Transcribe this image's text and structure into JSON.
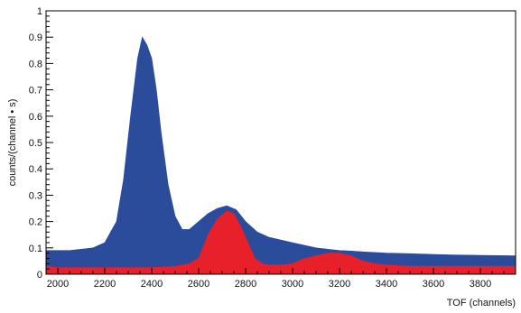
{
  "chart_data": {
    "type": "area",
    "title": "",
    "xlabel": "TOF (channels)",
    "ylabel": "counts/(channel • s)",
    "xlim": [
      1950,
      3950
    ],
    "ylim": [
      0,
      1
    ],
    "x_ticks": [
      2000,
      2200,
      2400,
      2600,
      2800,
      3000,
      3200,
      3400,
      3600,
      3800
    ],
    "y_ticks": [
      0,
      0.1,
      0.2,
      0.3,
      0.4,
      0.5,
      0.6,
      0.7,
      0.8,
      0.9,
      1
    ],
    "x_tick_labels": [
      "2000",
      "2200",
      "2400",
      "2600",
      "2800",
      "3000",
      "3200",
      "3400",
      "3600",
      "3800"
    ],
    "y_tick_labels": [
      "0",
      "0.1",
      "0.2",
      "0.3",
      "0.4",
      "0.5",
      "0.6",
      "0.7",
      "0.8",
      "0.9",
      "1"
    ],
    "grid": false,
    "legend": "none",
    "series": [
      {
        "color": "#2b4b9b",
        "x": [
          1950,
          2000,
          2050,
          2100,
          2150,
          2200,
          2250,
          2280,
          2310,
          2340,
          2360,
          2380,
          2400,
          2420,
          2440,
          2470,
          2500,
          2530,
          2560,
          2600,
          2640,
          2680,
          2720,
          2760,
          2800,
          2850,
          2900,
          2950,
          3000,
          3050,
          3100,
          3150,
          3200,
          3250,
          3300,
          3400,
          3500,
          3600,
          3700,
          3800,
          3950
        ],
        "y": [
          0.09,
          0.09,
          0.09,
          0.095,
          0.1,
          0.12,
          0.2,
          0.36,
          0.6,
          0.82,
          0.9,
          0.87,
          0.82,
          0.7,
          0.54,
          0.34,
          0.22,
          0.17,
          0.17,
          0.2,
          0.23,
          0.25,
          0.26,
          0.245,
          0.2,
          0.16,
          0.14,
          0.13,
          0.12,
          0.11,
          0.1,
          0.095,
          0.09,
          0.088,
          0.085,
          0.08,
          0.078,
          0.075,
          0.073,
          0.072,
          0.07
        ]
      },
      {
        "color": "#e8202a",
        "x": [
          1950,
          2000,
          2100,
          2200,
          2300,
          2400,
          2500,
          2560,
          2600,
          2640,
          2680,
          2720,
          2750,
          2780,
          2810,
          2840,
          2870,
          2900,
          2950,
          3000,
          3050,
          3100,
          3150,
          3200,
          3250,
          3300,
          3350,
          3400,
          3500,
          3600,
          3700,
          3800,
          3950
        ],
        "y": [
          0.03,
          0.025,
          0.025,
          0.025,
          0.025,
          0.025,
          0.03,
          0.04,
          0.06,
          0.15,
          0.21,
          0.24,
          0.23,
          0.18,
          0.12,
          0.06,
          0.04,
          0.035,
          0.035,
          0.04,
          0.06,
          0.07,
          0.08,
          0.08,
          0.07,
          0.05,
          0.04,
          0.035,
          0.03,
          0.03,
          0.03,
          0.03,
          0.03
        ]
      }
    ]
  }
}
